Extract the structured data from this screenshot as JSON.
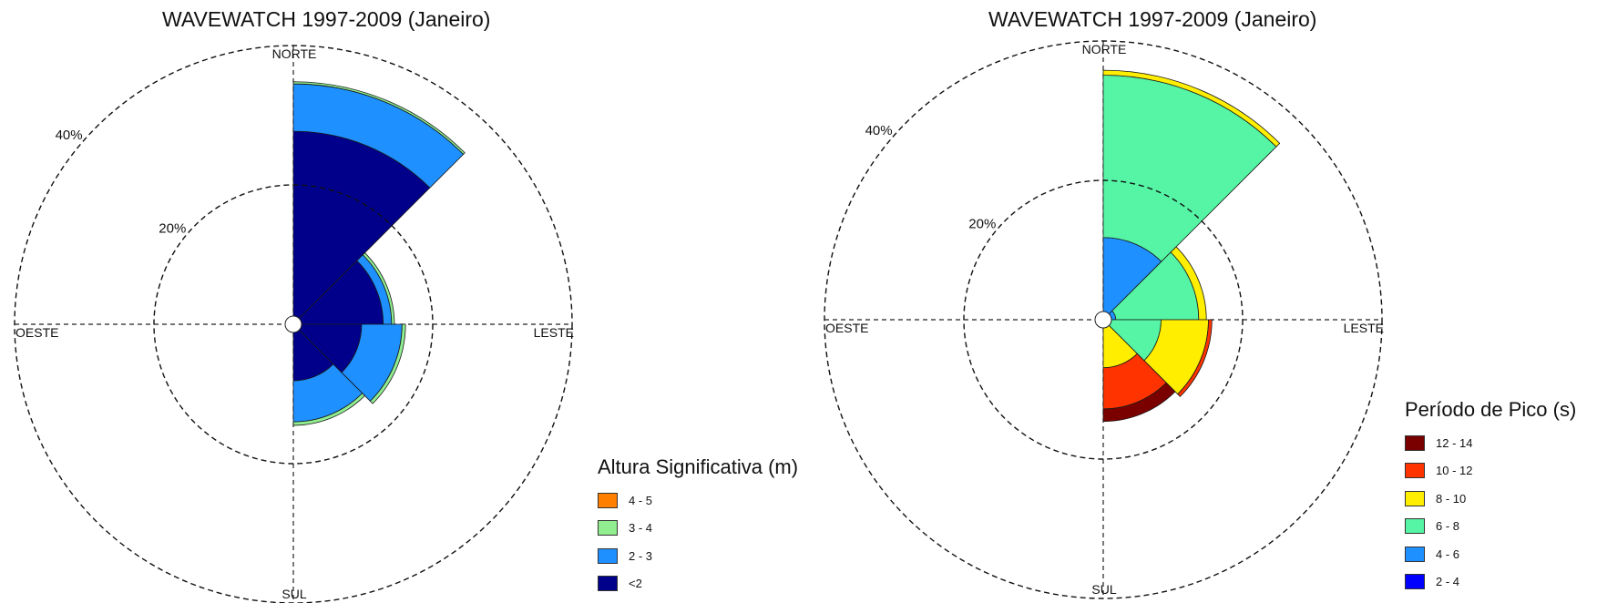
{
  "chart_data": [
    {
      "type": "rose",
      "title": "WAVEWATCH 1997-2009 (Janeiro)",
      "directions": {
        "north": "NORTE",
        "south": "SUL",
        "east": "LESTE",
        "west": "OESTE"
      },
      "ring_labels": [
        "20%",
        "40%"
      ],
      "rings_percent": [
        20,
        40
      ],
      "legend_title": "Altura Significativa (m)",
      "classes": [
        {
          "label": "<2",
          "color": "#00008b"
        },
        {
          "label": "2 - 3",
          "color": "#1e90ff"
        },
        {
          "label": "3 - 4",
          "color": "#90ee90"
        },
        {
          "label": "4 - 5",
          "color": "#ff7f00"
        }
      ],
      "sectors": [
        {
          "direction": "NNE",
          "center_deg": 22.5,
          "values": [
            27.7,
            6.8,
            0.3,
            0.0
          ]
        },
        {
          "direction": "ENE",
          "center_deg": 67.5,
          "values": [
            12.9,
            1.2,
            0.4,
            0.0
          ]
        },
        {
          "direction": "ESE",
          "center_deg": 112.5,
          "values": [
            9.8,
            5.8,
            0.5,
            0.0
          ]
        },
        {
          "direction": "SSE",
          "center_deg": 157.5,
          "values": [
            8.1,
            5.9,
            0.5,
            0.0
          ]
        },
        {
          "direction": "SSW",
          "center_deg": 202.5,
          "values": [
            1.0,
            0.0,
            0.0,
            0.0
          ]
        },
        {
          "direction": "WSW",
          "center_deg": 247.5,
          "values": [
            0.4,
            0.6,
            0.0,
            0.0
          ]
        }
      ]
    },
    {
      "type": "rose",
      "title": "WAVEWATCH 1997-2009 (Janeiro)",
      "directions": {
        "north": "NORTE",
        "south": "SUL",
        "east": "LESTE",
        "west": "OESTE"
      },
      "ring_labels": [
        "20%",
        "40%"
      ],
      "rings_percent": [
        20,
        40
      ],
      "legend_title": "Período de Pico (s)",
      "classes": [
        {
          "label": "2 - 4",
          "color": "#0000ff"
        },
        {
          "label": "4 - 6",
          "color": "#1e90ff"
        },
        {
          "label": "6 - 8",
          "color": "#55f5a5"
        },
        {
          "label": "8 - 10",
          "color": "#ffee00"
        },
        {
          "label": "10 - 12",
          "color": "#ff3300"
        },
        {
          "label": "12 - 14",
          "color": "#7a0000"
        }
      ],
      "sectors": [
        {
          "direction": "NNE",
          "center_deg": 22.5,
          "values": [
            0.0,
            11.8,
            23.3,
            0.7,
            0.0,
            0.0
          ]
        },
        {
          "direction": "ENE",
          "center_deg": 67.5,
          "values": [
            0.0,
            1.8,
            11.9,
            1.1,
            0.0,
            0.0
          ]
        },
        {
          "direction": "ESE",
          "center_deg": 112.5,
          "values": [
            0.0,
            0.0,
            8.3,
            6.8,
            0.5,
            0.0
          ]
        },
        {
          "direction": "SSE",
          "center_deg": 157.5,
          "values": [
            0.0,
            0.0,
            1.0,
            5.9,
            5.9,
            1.8
          ]
        },
        {
          "direction": "SSW",
          "center_deg": 202.5,
          "values": [
            0.0,
            0.0,
            0.0,
            0.0,
            0.0,
            0.0
          ]
        },
        {
          "direction": "WSW",
          "center_deg": 247.5,
          "values": [
            0.0,
            0.0,
            0.0,
            0.0,
            0.6,
            0.3
          ]
        }
      ]
    }
  ]
}
